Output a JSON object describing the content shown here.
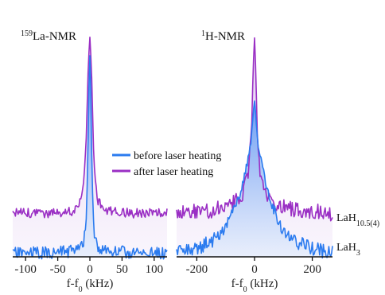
{
  "chart_data": [
    {
      "type": "line",
      "title_sup": "159",
      "title": "La-NMR",
      "xlabel": "f-f",
      "xlabel_sub": "0",
      "xlabel_unit": " (kHz)",
      "xlim": [
        -120,
        120
      ],
      "xticks": [
        "-100",
        "-50",
        "0",
        "50",
        "100"
      ],
      "xtick_values": [
        -100,
        -50,
        0,
        50,
        100
      ],
      "series": [
        {
          "name": "before laser heating",
          "color": "#2b7bef",
          "x": [
            -120,
            -60,
            -25,
            -12,
            -6,
            -3,
            -1,
            0,
            1,
            3,
            6,
            12,
            25,
            60,
            120
          ],
          "y": [
            0.06,
            0.06,
            0.07,
            0.09,
            0.17,
            0.55,
            0.93,
            1.0,
            0.92,
            0.5,
            0.15,
            0.09,
            0.07,
            0.06,
            0.06
          ]
        },
        {
          "name": "after laser heating",
          "color": "#9a2fc4",
          "x": [
            -120,
            -60,
            -25,
            -12,
            -6,
            -3,
            -1,
            0,
            1,
            3,
            6,
            12,
            25,
            60,
            120
          ],
          "y": [
            0.28,
            0.28,
            0.29,
            0.34,
            0.55,
            0.85,
            0.97,
            1.0,
            0.96,
            0.82,
            0.5,
            0.33,
            0.29,
            0.28,
            0.28
          ]
        }
      ]
    },
    {
      "type": "line",
      "title_sup": "1",
      "title": "H-NMR",
      "xlabel": "f-f",
      "xlabel_sub": "0",
      "xlabel_unit": " (kHz)",
      "xlim": [
        -270,
        270
      ],
      "xticks": [
        "-200",
        "0",
        "200"
      ],
      "xtick_values": [
        -200,
        0,
        200
      ],
      "series": [
        {
          "name": "before laser heating",
          "color": "#2b7bef",
          "x": [
            -270,
            -200,
            -130,
            -90,
            -60,
            -40,
            -25,
            -12,
            -5,
            0,
            5,
            12,
            25,
            40,
            60,
            90,
            130,
            200,
            270
          ],
          "y": [
            0.04,
            0.06,
            0.11,
            0.19,
            0.28,
            0.38,
            0.47,
            0.56,
            0.7,
            0.76,
            0.68,
            0.55,
            0.46,
            0.37,
            0.27,
            0.17,
            0.1,
            0.06,
            0.04
          ]
        },
        {
          "name": "after laser heating",
          "color": "#9a2fc4",
          "x": [
            -270,
            -150,
            -80,
            -40,
            -20,
            -10,
            -4,
            0,
            4,
            10,
            20,
            40,
            80,
            150,
            270
          ],
          "y": [
            0.28,
            0.29,
            0.32,
            0.36,
            0.46,
            0.64,
            0.9,
            1.0,
            0.86,
            0.6,
            0.44,
            0.35,
            0.31,
            0.29,
            0.28
          ]
        }
      ]
    }
  ],
  "legend": {
    "items": [
      {
        "label": "before laser heating",
        "color": "#2b7bef"
      },
      {
        "label": "after laser heating",
        "color": "#9a2fc4"
      }
    ]
  },
  "side_labels": {
    "top": "LaH",
    "top_sub": "10.5(4)",
    "bottom": "LaH",
    "bottom_sub": "3"
  }
}
